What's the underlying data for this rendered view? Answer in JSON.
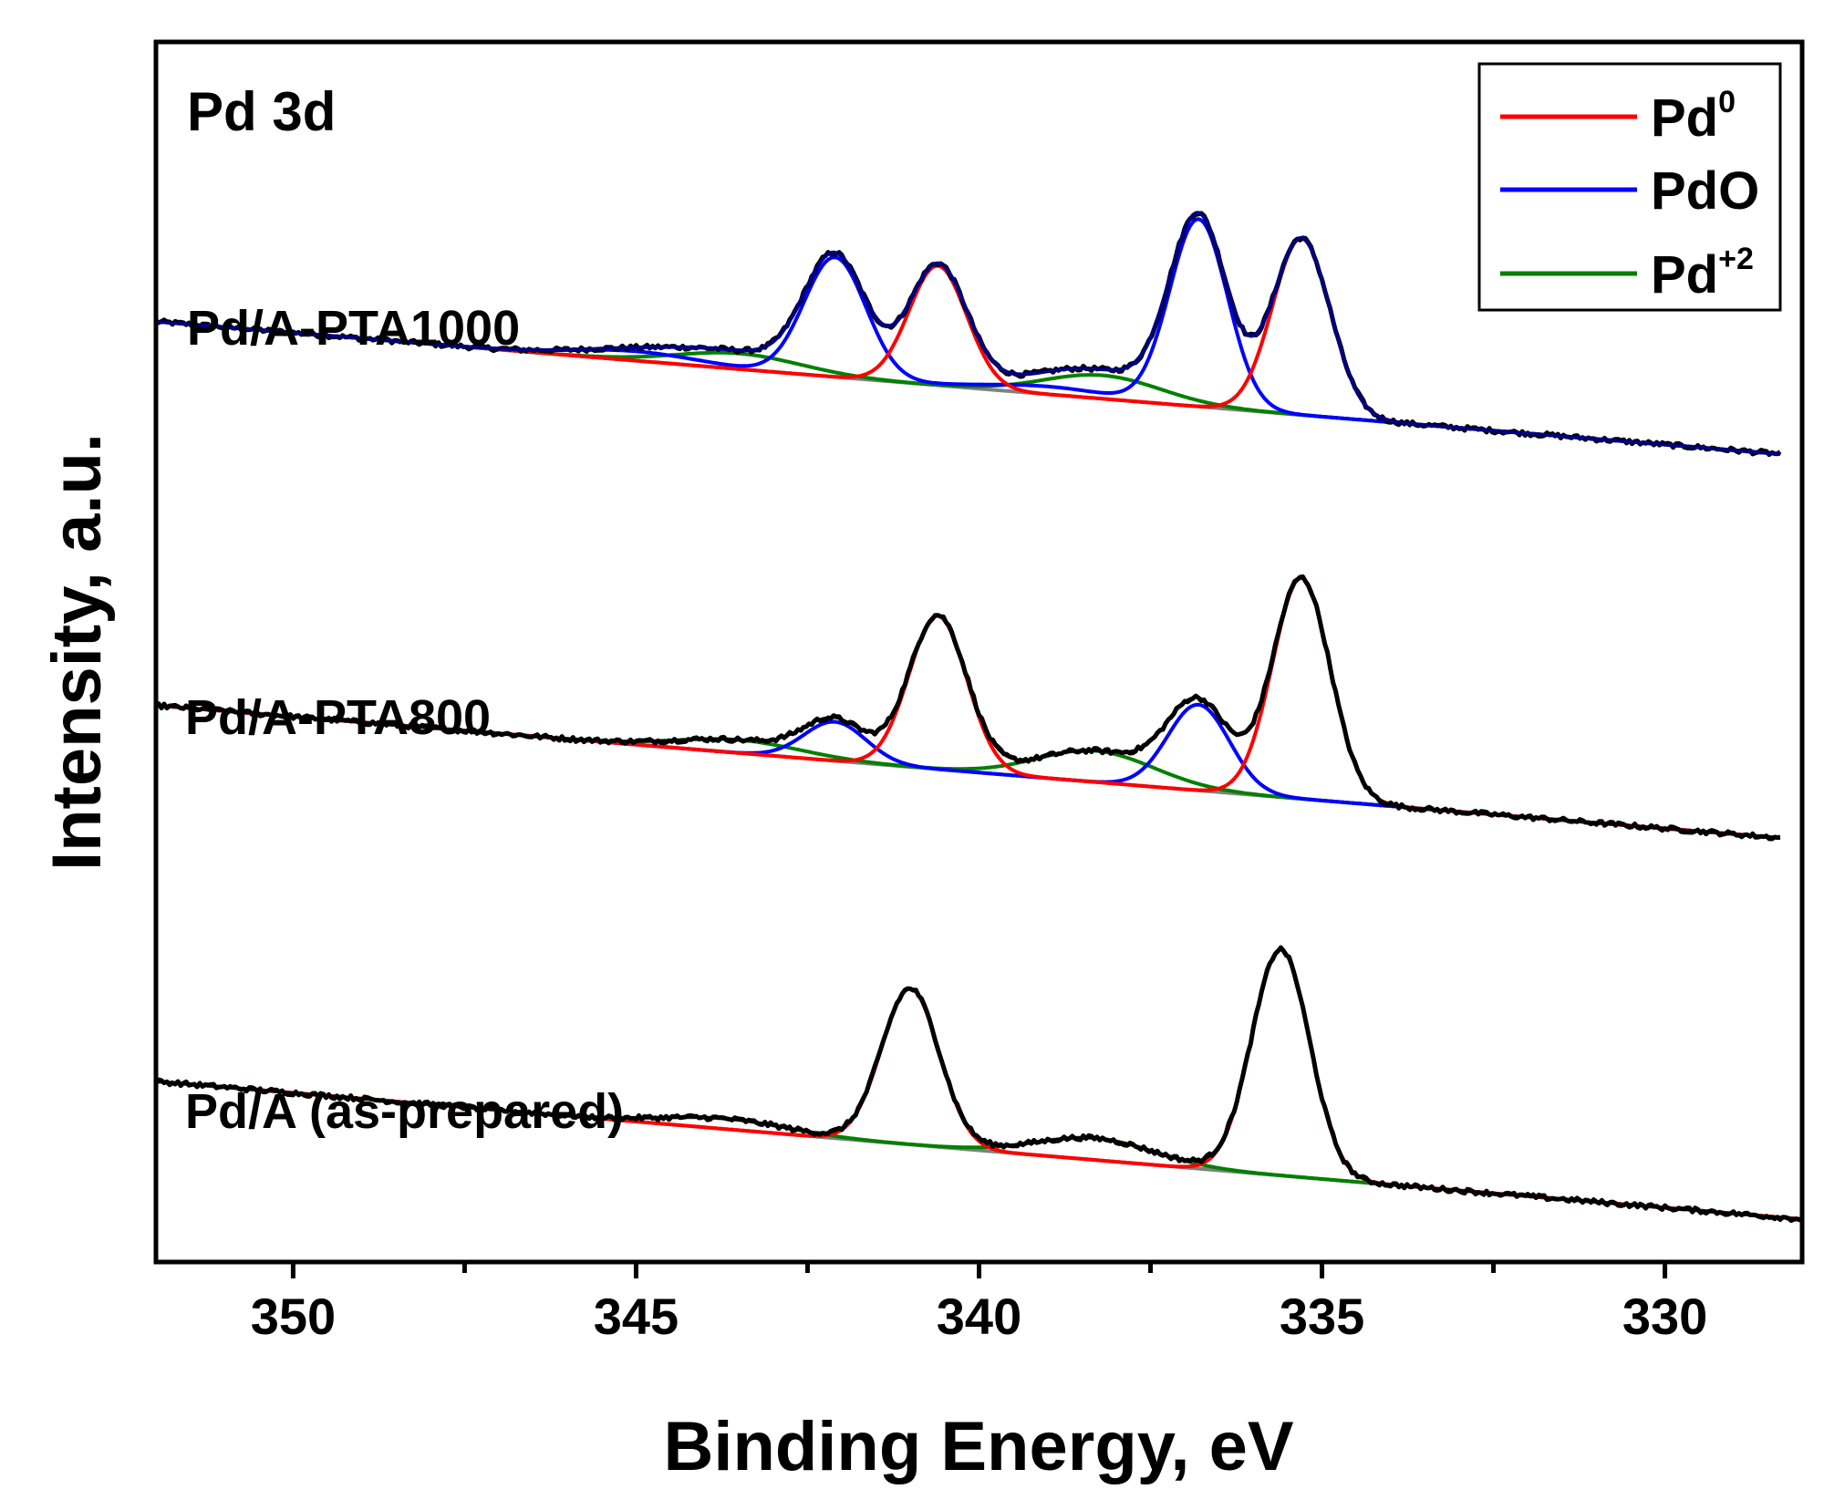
{
  "chart_data": {
    "type": "line",
    "title": "Pd 3d",
    "xlabel": "Binding Energy, eV",
    "ylabel": "Intensity, a.u.",
    "xlim": [
      352,
      328
    ],
    "x_reversed": true,
    "xticks": [
      350,
      345,
      340,
      335,
      330
    ],
    "xtick_labels": [
      "350",
      "345",
      "340",
      "335",
      "330"
    ],
    "yticks_shown": false,
    "legend": {
      "placement": "top-right",
      "entries": [
        {
          "key": "pd0",
          "label": "Pd",
          "superscript": "0",
          "color": "#ff0000"
        },
        {
          "key": "pdo",
          "label": "PdO",
          "superscript": "",
          "color": "#0000ff"
        },
        {
          "key": "pd2",
          "label": "Pd",
          "superscript": "+2",
          "color": "#008000"
        }
      ]
    },
    "colors": {
      "measured": "#000000",
      "envelope": "#000080",
      "background": "#808080",
      "pd0": "#ff0000",
      "pdo": "#0000ff",
      "pd2": "#008000"
    },
    "spectra": [
      {
        "name": "Pd/A-PTA1000",
        "label": "Pd/A-PTA1000",
        "x_start": 352.0,
        "x_end": 328.3,
        "background_start": 2.55,
        "background_end": 0.0,
        "show_envelope": true,
        "components": {
          "pd0": [
            [
              335.3,
              3.4,
              0.42
            ],
            [
              340.6,
              2.3,
              0.42
            ]
          ],
          "pdo": [
            [
              336.8,
              3.6,
              0.42
            ],
            [
              342.1,
              2.3,
              0.45
            ],
            [
              345.0,
              0.18,
              0.9
            ],
            [
              339.0,
              0.15,
              0.9
            ]
          ],
          "pd2": [
            [
              338.2,
              0.45,
              0.85
            ],
            [
              343.5,
              0.3,
              0.9
            ]
          ]
        }
      },
      {
        "name": "Pd/A-PTA800",
        "label": "Pd/A-PTA800",
        "x_start": 352.0,
        "x_end": 328.3,
        "background_start": 2.55,
        "background_end": 0.0,
        "show_envelope": false,
        "components": {
          "pd0": [
            [
              335.3,
              4.25,
              0.42
            ],
            [
              340.6,
              2.95,
              0.42
            ]
          ],
          "pdo": [
            [
              336.8,
              1.65,
              0.45
            ],
            [
              342.1,
              0.75,
              0.45
            ]
          ],
          "pd2": [
            [
              338.3,
              0.6,
              0.85
            ],
            [
              343.5,
              0.25,
              0.9
            ]
          ]
        }
      },
      {
        "name": "Pd/A (as-prepared)",
        "label": "Pd/A (as-prepared)",
        "x_start": 352.0,
        "x_end": 328.0,
        "background_start": 2.65,
        "background_end": 0.0,
        "show_envelope": false,
        "components": {
          "pd0": [
            [
              335.6,
              4.35,
              0.42
            ],
            [
              341.0,
              3.0,
              0.42
            ]
          ],
          "pdo": [],
          "pd2": [
            [
              338.3,
              0.42,
              0.85
            ],
            [
              343.7,
              0.2,
              0.9
            ]
          ]
        }
      }
    ]
  }
}
